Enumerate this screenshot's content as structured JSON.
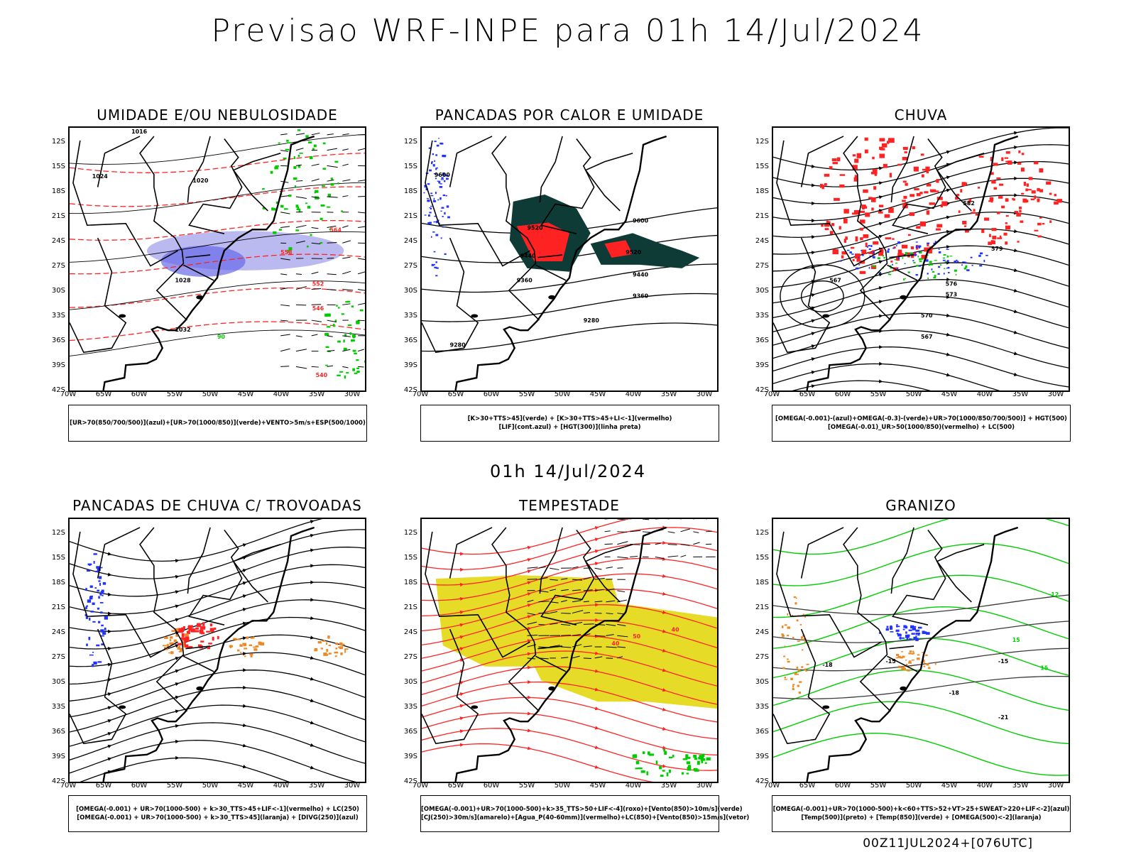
{
  "page": {
    "title": "Previsao WRF-INPE  para 01h 14/Jul/2024",
    "subtitle": "01h 14/Jul/2024",
    "footer": "00Z11JUL2024+[076UTC]"
  },
  "axes": {
    "lat_ticks": [
      "12S",
      "15S",
      "18S",
      "21S",
      "24S",
      "27S",
      "30S",
      "33S",
      "36S",
      "39S",
      "42S"
    ],
    "lon_ticks": [
      "70W",
      "65W",
      "60W",
      "55W",
      "50W",
      "45W",
      "40W",
      "35W",
      "30W"
    ]
  },
  "colors": {
    "green": "#00cc00",
    "red": "#ff2222",
    "blue": "#2233ff",
    "orange": "#ee8822",
    "yellow": "#e6dc28",
    "darkgreen": "#0f3b36",
    "lavender": "#a9a9ee"
  },
  "panels": [
    {
      "title": "UMIDADE E/OU NEBULOSIDADE",
      "legend": [
        "[UR>70(850/700/500)](azul)+[UR>70(1000/850)](verde)+VENTO>5m/s+ESP(500/1000)"
      ],
      "contour_labels": [
        "1016",
        "1020",
        "1024",
        "1028",
        "1032",
        "570",
        "564",
        "558",
        "552",
        "546",
        "540",
        "90"
      ]
    },
    {
      "title": "PANCADAS POR CALOR E UMIDADE",
      "legend": [
        "[K>30+TTS>45](verde) + [K>30+TTS>45+LI<-1](vermelho)",
        "[LIF](cont.azul) + [HGT(300)](linha preta)"
      ],
      "contour_labels": [
        "9600",
        "9520",
        "9440",
        "9360",
        "9280"
      ]
    },
    {
      "title": "CHUVA",
      "legend": [
        "[OMEGA(-0.001)-(azul)+OMEGA(-0.3)-(verde)+UR>70(1000/850/700/500)] + HGT(500)",
        "[OMEGA(-0.01)_UR>50(1000/850)(vermelho) + LC(500)"
      ],
      "contour_labels": [
        "582",
        "579",
        "576",
        "573",
        "570",
        "567"
      ]
    },
    {
      "title": "PANCADAS DE CHUVA C/ TROVOADAS",
      "legend": [
        "[OMEGA(-0.001) + UR>70(1000-500) + k>30_TTS>45+LIF<-1](vermelho) + LC(250)",
        "[OMEGA(-0.001) + UR>70(1000-500) + k>30_TTS>45](laranja) + [DIVG(250)](azul)"
      ],
      "contour_labels": []
    },
    {
      "title": "TEMPESTADE",
      "legend": [
        "[OMEGA(-0.001)+UR>70(1000-500)+k>35_TTS>50+LIF<-4](roxo)+[Vento(850)>10m/s](verde)",
        "[CJ(250)>30m/s](amarelo)+[Agua_P(40-60mm)](vermelho)+LC(850)+[Vento(850)>15m/s](vetor)"
      ],
      "contour_labels": [
        "40",
        "50",
        "40"
      ]
    },
    {
      "title": "GRANIZO",
      "legend": [
        "[OMEGA(-0.001)+UR>70(1000-500)+k<60+TTS>52+VT>25+SWEAT>220+LIF<-2](azul)",
        "[Temp(500)](preto) + [Temp(850)](verde) + [OMEGA(500)<-2](laranja)"
      ],
      "contour_labels": [
        "-15",
        "-18",
        "-21",
        "12",
        "15",
        "3"
      ]
    }
  ],
  "chart_data": [
    {
      "type": "map",
      "title": "UMIDADE E/OU NEBULOSIDADE",
      "lat_range": [
        -42,
        -12
      ],
      "lon_range": [
        -70,
        -28
      ],
      "contour_levels": [
        1016,
        1020,
        1024,
        1028,
        1032
      ]
    },
    {
      "type": "map",
      "title": "PANCADAS POR CALOR E UMIDADE",
      "lat_range": [
        -42,
        -12
      ],
      "lon_range": [
        -70,
        -28
      ],
      "contour_levels": [
        9280,
        9360,
        9440,
        9520,
        9600
      ]
    },
    {
      "type": "map",
      "title": "CHUVA",
      "lat_range": [
        -42,
        -12
      ],
      "lon_range": [
        -70,
        -28
      ],
      "contour_levels": [
        567,
        570,
        573,
        576,
        579,
        582
      ]
    },
    {
      "type": "map",
      "title": "PANCADAS DE CHUVA C/ TROVOADAS",
      "lat_range": [
        -42,
        -12
      ],
      "lon_range": [
        -70,
        -28
      ]
    },
    {
      "type": "map",
      "title": "TEMPESTADE",
      "lat_range": [
        -42,
        -12
      ],
      "lon_range": [
        -70,
        -28
      ],
      "contour_levels": [
        40,
        50
      ]
    },
    {
      "type": "map",
      "title": "GRANIZO",
      "lat_range": [
        -42,
        -12
      ],
      "lon_range": [
        -70,
        -28
      ],
      "contour_levels": [
        -21,
        -18,
        -15,
        3,
        12,
        15
      ]
    }
  ]
}
